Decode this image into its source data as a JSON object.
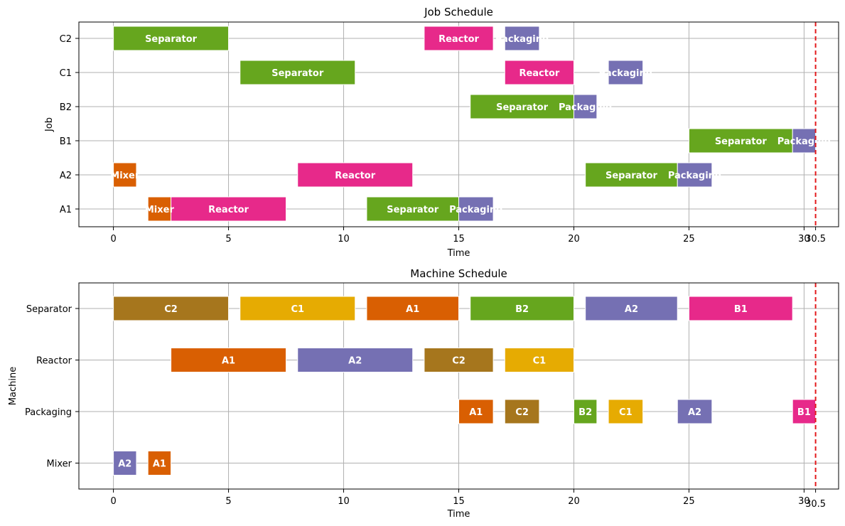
{
  "chart_data": [
    {
      "type": "gantt",
      "title": "Job Schedule",
      "xlabel": "Time",
      "ylabel": "Job",
      "xlim": [
        -1.5,
        31.5
      ],
      "xticks": [
        0,
        5,
        10,
        15,
        20,
        25,
        30
      ],
      "deadline": 30.5,
      "deadline_label": "30.5",
      "grid": true,
      "rows": [
        "C2",
        "C1",
        "B2",
        "B1",
        "A2",
        "A1"
      ],
      "colors": {
        "Separator": "#66a61e",
        "Reactor": "#e7298a",
        "Packaging": "#7570b3",
        "Mixer": "#d95f02"
      },
      "tasks": [
        {
          "row": "C2",
          "label": "Separator",
          "start": 0,
          "end": 5
        },
        {
          "row": "C2",
          "label": "Reactor",
          "start": 13.5,
          "end": 16.5
        },
        {
          "row": "C2",
          "label": "Packaging",
          "start": 17,
          "end": 18.5
        },
        {
          "row": "C1",
          "label": "Separator",
          "start": 5.5,
          "end": 10.5
        },
        {
          "row": "C1",
          "label": "Reactor",
          "start": 17,
          "end": 20
        },
        {
          "row": "C1",
          "label": "Packaging",
          "start": 21.5,
          "end": 23
        },
        {
          "row": "B2",
          "label": "Separator",
          "start": 15.5,
          "end": 20
        },
        {
          "row": "B2",
          "label": "Packaging",
          "start": 20,
          "end": 21
        },
        {
          "row": "B1",
          "label": "Separator",
          "start": 25,
          "end": 29.5
        },
        {
          "row": "B1",
          "label": "Packaging",
          "start": 29.5,
          "end": 30.5
        },
        {
          "row": "A2",
          "label": "Mixer",
          "start": 0,
          "end": 1
        },
        {
          "row": "A2",
          "label": "Reactor",
          "start": 8,
          "end": 13
        },
        {
          "row": "A2",
          "label": "Separator",
          "start": 20.5,
          "end": 24.5
        },
        {
          "row": "A2",
          "label": "Packaging",
          "start": 24.5,
          "end": 26
        },
        {
          "row": "A1",
          "label": "Mixer",
          "start": 1.5,
          "end": 2.5
        },
        {
          "row": "A1",
          "label": "Reactor",
          "start": 2.5,
          "end": 7.5
        },
        {
          "row": "A1",
          "label": "Separator",
          "start": 11,
          "end": 15
        },
        {
          "row": "A1",
          "label": "Packaging",
          "start": 15,
          "end": 16.5
        }
      ]
    },
    {
      "type": "gantt",
      "title": "Machine Schedule",
      "xlabel": "Time",
      "ylabel": "Machine",
      "xlim": [
        -1.5,
        31.5
      ],
      "xticks": [
        0,
        5,
        10,
        15,
        20,
        25,
        30
      ],
      "deadline": 30.5,
      "deadline_label": "30.5",
      "grid": true,
      "rows": [
        "Separator",
        "Reactor",
        "Packaging",
        "Mixer"
      ],
      "colors": {
        "A1": "#d95f02",
        "A2": "#7570b3",
        "B1": "#e7298a",
        "B2": "#66a61e",
        "C1": "#e6ab02",
        "C2": "#a6761d"
      },
      "tasks": [
        {
          "row": "Separator",
          "label": "C2",
          "start": 0,
          "end": 5
        },
        {
          "row": "Separator",
          "label": "C1",
          "start": 5.5,
          "end": 10.5
        },
        {
          "row": "Separator",
          "label": "A1",
          "start": 11,
          "end": 15
        },
        {
          "row": "Separator",
          "label": "B2",
          "start": 15.5,
          "end": 20
        },
        {
          "row": "Separator",
          "label": "A2",
          "start": 20.5,
          "end": 24.5
        },
        {
          "row": "Separator",
          "label": "B1",
          "start": 25,
          "end": 29.5
        },
        {
          "row": "Reactor",
          "label": "A1",
          "start": 2.5,
          "end": 7.5
        },
        {
          "row": "Reactor",
          "label": "A2",
          "start": 8,
          "end": 13
        },
        {
          "row": "Reactor",
          "label": "C2",
          "start": 13.5,
          "end": 16.5
        },
        {
          "row": "Reactor",
          "label": "C1",
          "start": 17,
          "end": 20
        },
        {
          "row": "Packaging",
          "label": "A1",
          "start": 15,
          "end": 16.5
        },
        {
          "row": "Packaging",
          "label": "C2",
          "start": 17,
          "end": 18.5
        },
        {
          "row": "Packaging",
          "label": "B2",
          "start": 20,
          "end": 21
        },
        {
          "row": "Packaging",
          "label": "C1",
          "start": 21.5,
          "end": 23
        },
        {
          "row": "Packaging",
          "label": "A2",
          "start": 24.5,
          "end": 26
        },
        {
          "row": "Packaging",
          "label": "B1",
          "start": 29.5,
          "end": 30.5
        },
        {
          "row": "Mixer",
          "label": "A2",
          "start": 0,
          "end": 1
        },
        {
          "row": "Mixer",
          "label": "A1",
          "start": 1.5,
          "end": 2.5
        }
      ]
    }
  ]
}
